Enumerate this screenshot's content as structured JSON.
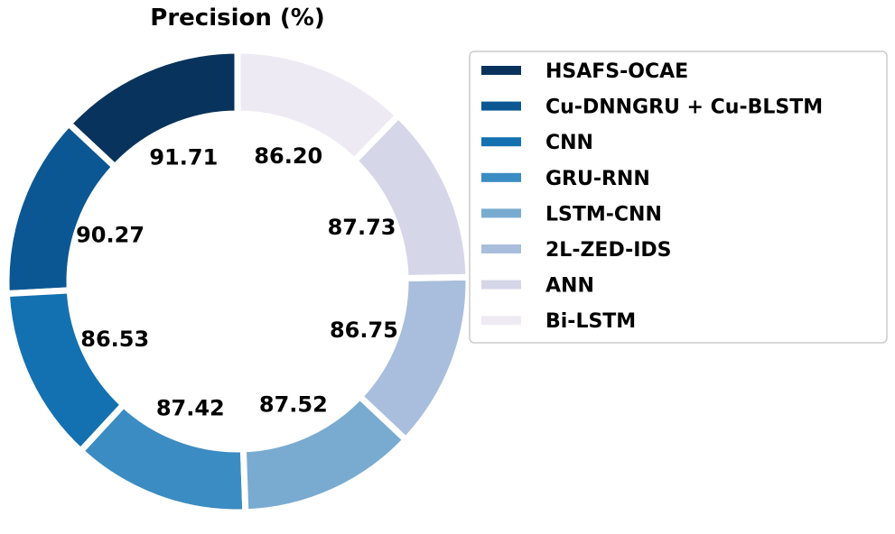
{
  "chart_data": {
    "type": "pie",
    "variant": "donut",
    "title": "Precision (%)",
    "categories": [
      "HSAFS-OCAE",
      "Cu-DNNGRU + Cu-BLSTM",
      "CNN",
      "GRU-RNN",
      "LSTM-CNN",
      "2L-ZED-IDS",
      "ANN",
      "Bi-LSTM"
    ],
    "values": [
      91.71,
      90.27,
      86.53,
      87.42,
      87.52,
      86.75,
      87.73,
      86.2
    ],
    "value_labels": [
      "91.71",
      "90.27",
      "86.53",
      "87.42",
      "87.52",
      "86.75",
      "87.73",
      "86.20"
    ],
    "colors": [
      "#08335c",
      "#0b5793",
      "#1471b1",
      "#3b8cc2",
      "#79abd1",
      "#a9bedc",
      "#d6d6e9",
      "#eeeaf4"
    ],
    "legend_position": "right",
    "legend_title": ""
  }
}
